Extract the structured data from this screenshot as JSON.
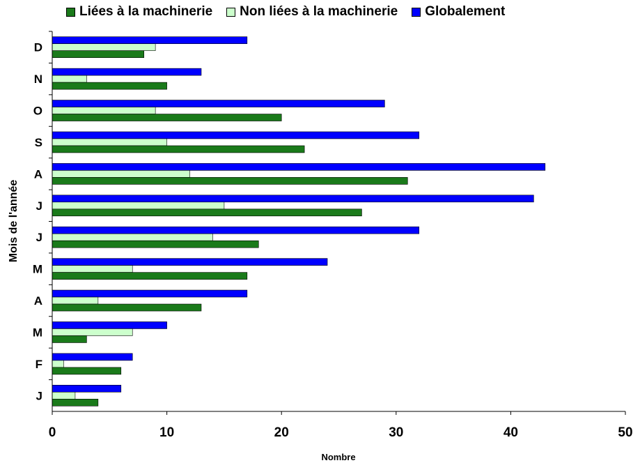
{
  "chart_data": {
    "type": "bar",
    "orientation": "horizontal",
    "categories": [
      "J",
      "F",
      "M",
      "A",
      "M",
      "J",
      "J",
      "A",
      "S",
      "O",
      "N",
      "D"
    ],
    "series": [
      {
        "name": "Liées à la machinerie",
        "color": "#1a7a1a",
        "values": [
          4,
          6,
          3,
          13,
          17,
          18,
          27,
          31,
          22,
          20,
          10,
          8
        ]
      },
      {
        "name": "Non liées à la machinerie",
        "color": "#ccffcc",
        "values": [
          2,
          1,
          7,
          4,
          7,
          14,
          15,
          12,
          10,
          9,
          3,
          9
        ]
      },
      {
        "name": "Globalement",
        "color": "#0000ff",
        "values": [
          6,
          7,
          10,
          17,
          24,
          32,
          42,
          43,
          32,
          29,
          13,
          17
        ]
      }
    ],
    "xlabel": "Nombre",
    "ylabel": "Mois de l'année",
    "xlim": [
      0,
      50
    ],
    "xticks": [
      "0",
      "10",
      "20",
      "30",
      "40",
      "50"
    ],
    "grid": false,
    "legend_position": "top"
  }
}
